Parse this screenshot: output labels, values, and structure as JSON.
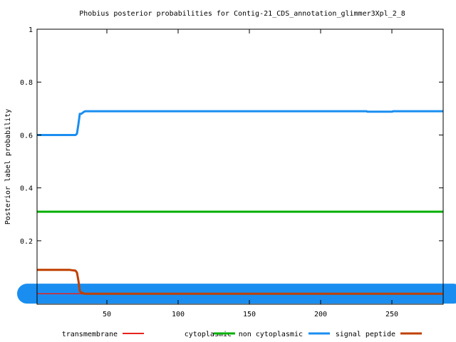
{
  "chart_data": {
    "type": "line",
    "title": "Phobius posterior probabilities for Contig-21_CDS_annotation_glimmer3Xpl_2_8",
    "xlabel": "",
    "ylabel": "Posterior label probability",
    "xlim": [
      1,
      286
    ],
    "ylim": [
      -0.04,
      1
    ],
    "xticks": [
      50,
      100,
      150,
      200,
      250
    ],
    "yticks": [
      0.2,
      0.4,
      0.6,
      0.8,
      1
    ],
    "ytick_labels": [
      "0.2",
      "0.4",
      "0.6",
      "0.8",
      "1"
    ],
    "xtick_labels": [
      "50",
      "100",
      "150",
      "200",
      "250"
    ],
    "grid": false,
    "legend_position": "bottom",
    "series": [
      {
        "name": "transmembrane",
        "color": "#e8231c",
        "x": [
          1,
          286
        ],
        "y": [
          0.0,
          0.0
        ]
      },
      {
        "name": "cytoplasmic",
        "color": "#00b000",
        "x": [
          1,
          286
        ],
        "y": [
          0.31,
          0.31
        ]
      },
      {
        "name": "non cytoplasmic",
        "color": "#1a8ef0",
        "x": [
          1,
          28,
          29,
          30,
          31,
          32,
          33,
          34,
          35,
          232,
          233,
          250,
          251,
          286
        ],
        "y": [
          0.6,
          0.6,
          0.605,
          0.64,
          0.68,
          0.68,
          0.684,
          0.688,
          0.69,
          0.69,
          0.688,
          0.688,
          0.69,
          0.69
        ]
      },
      {
        "name": "signal peptide",
        "color": "#c04000",
        "x": [
          1,
          24,
          28,
          29,
          30,
          31,
          32,
          33,
          34,
          286
        ],
        "y": [
          0.09,
          0.09,
          0.087,
          0.08,
          0.05,
          0.01,
          0.004,
          0.003,
          0.0,
          0.0
        ]
      }
    ],
    "band": {
      "name": "non cytoplasmic",
      "color": "#1a8ef0",
      "x": [
        1,
        286
      ],
      "y": [
        0.0,
        0.0
      ]
    }
  }
}
